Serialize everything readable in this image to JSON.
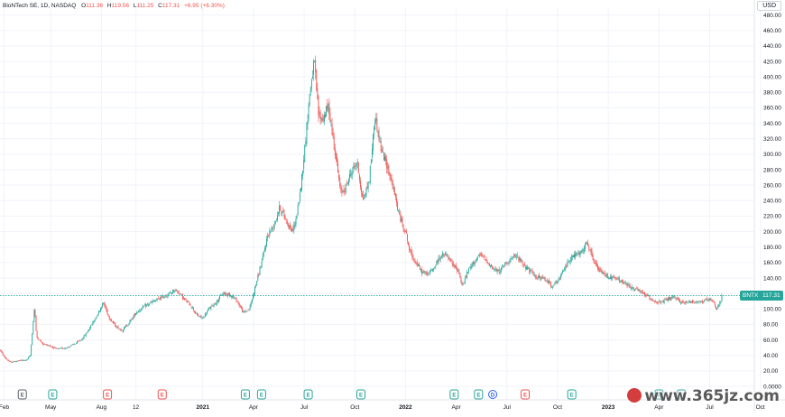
{
  "legend": {
    "symbol": "BioNTech SE, 1D, NASDAQ",
    "open_label": "O",
    "open": "111.36",
    "high_label": "H",
    "high": "119.56",
    "low_label": "L",
    "low": "111.25",
    "close_label": "C",
    "close": "117.31",
    "change": "+6.95 (+6.30%)"
  },
  "currency": "USD",
  "price_tag": {
    "ticker": "BNTX",
    "price": "117.31"
  },
  "watermark": "www.365jz.com",
  "colors": {
    "up": "#26a69a",
    "down": "#ef5350",
    "grid": "#f0f3fa",
    "price_line": "#26a69a"
  },
  "chart_data": {
    "type": "candlestick",
    "ylim": [
      0,
      490
    ],
    "y_ticks": [
      "480.00",
      "460.00",
      "440.00",
      "420.00",
      "400.00",
      "380.00",
      "360.00",
      "340.00",
      "320.00",
      "300.00",
      "280.00",
      "260.00",
      "240.00",
      "220.00",
      "200.00",
      "180.00",
      "160.00",
      "140.00",
      "120.00",
      "100.00",
      "80.00",
      "60.00",
      "40.00",
      "20.00",
      "0.0000"
    ],
    "x_ticks": [
      {
        "label": "Feb",
        "t": 0.02,
        "bold": false
      },
      {
        "label": "May",
        "t": 0.25,
        "bold": false
      },
      {
        "label": "Aug",
        "t": 0.5,
        "bold": false
      },
      {
        "label": "12",
        "t": 0.67,
        "bold": false
      },
      {
        "label": "2021",
        "t": 1.0,
        "bold": true
      },
      {
        "label": "Apr",
        "t": 1.25,
        "bold": false
      },
      {
        "label": "Jul",
        "t": 1.5,
        "bold": false
      },
      {
        "label": "Oct",
        "t": 1.75,
        "bold": false
      },
      {
        "label": "2022",
        "t": 2.0,
        "bold": true
      },
      {
        "label": "Apr",
        "t": 2.25,
        "bold": false
      },
      {
        "label": "Jul",
        "t": 2.5,
        "bold": false
      },
      {
        "label": "Oct",
        "t": 2.75,
        "bold": false
      },
      {
        "label": "2023",
        "t": 3.0,
        "bold": true
      },
      {
        "label": "Apr",
        "t": 3.25,
        "bold": false
      },
      {
        "label": "Jul",
        "t": 3.5,
        "bold": false
      },
      {
        "label": "Oct",
        "t": 3.75,
        "bold": false
      }
    ],
    "x_range": [
      0,
      3.8
    ],
    "price_anchors": [
      [
        0.0,
        47
      ],
      [
        0.02,
        38
      ],
      [
        0.05,
        31
      ],
      [
        0.09,
        33
      ],
      [
        0.13,
        34
      ],
      [
        0.15,
        40
      ],
      [
        0.17,
        104
      ],
      [
        0.18,
        64
      ],
      [
        0.21,
        55
      ],
      [
        0.24,
        53
      ],
      [
        0.28,
        48
      ],
      [
        0.33,
        50
      ],
      [
        0.37,
        55
      ],
      [
        0.4,
        60
      ],
      [
        0.43,
        70
      ],
      [
        0.47,
        88
      ],
      [
        0.51,
        108
      ],
      [
        0.54,
        88
      ],
      [
        0.57,
        78
      ],
      [
        0.6,
        72
      ],
      [
        0.63,
        80
      ],
      [
        0.67,
        95
      ],
      [
        0.71,
        103
      ],
      [
        0.76,
        110
      ],
      [
        0.8,
        115
      ],
      [
        0.84,
        120
      ],
      [
        0.86,
        125
      ],
      [
        0.88,
        122
      ],
      [
        0.91,
        112
      ],
      [
        0.94,
        105
      ],
      [
        0.97,
        92
      ],
      [
        1.0,
        88
      ],
      [
        1.03,
        100
      ],
      [
        1.07,
        110
      ],
      [
        1.1,
        120
      ],
      [
        1.14,
        118
      ],
      [
        1.17,
        110
      ],
      [
        1.2,
        95
      ],
      [
        1.23,
        100
      ],
      [
        1.26,
        130
      ],
      [
        1.29,
        160
      ],
      [
        1.32,
        195
      ],
      [
        1.35,
        208
      ],
      [
        1.38,
        232
      ],
      [
        1.41,
        215
      ],
      [
        1.44,
        200
      ],
      [
        1.46,
        215
      ],
      [
        1.48,
        250
      ],
      [
        1.5,
        300
      ],
      [
        1.53,
        385
      ],
      [
        1.55,
        420
      ],
      [
        1.57,
        352
      ],
      [
        1.59,
        345
      ],
      [
        1.62,
        362
      ],
      [
        1.64,
        325
      ],
      [
        1.66,
        290
      ],
      [
        1.68,
        250
      ],
      [
        1.7,
        255
      ],
      [
        1.73,
        275
      ],
      [
        1.76,
        290
      ],
      [
        1.79,
        240
      ],
      [
        1.82,
        265
      ],
      [
        1.85,
        350
      ],
      [
        1.88,
        305
      ],
      [
        1.91,
        285
      ],
      [
        1.94,
        255
      ],
      [
        1.97,
        220
      ],
      [
        2.0,
        200
      ],
      [
        2.02,
        175
      ],
      [
        2.05,
        160
      ],
      [
        2.08,
        148
      ],
      [
        2.11,
        145
      ],
      [
        2.14,
        153
      ],
      [
        2.17,
        168
      ],
      [
        2.2,
        170
      ],
      [
        2.23,
        158
      ],
      [
        2.26,
        150
      ],
      [
        2.28,
        130
      ],
      [
        2.31,
        150
      ],
      [
        2.34,
        162
      ],
      [
        2.37,
        170
      ],
      [
        2.4,
        162
      ],
      [
        2.43,
        152
      ],
      [
        2.46,
        148
      ],
      [
        2.49,
        158
      ],
      [
        2.52,
        165
      ],
      [
        2.55,
        168
      ],
      [
        2.58,
        158
      ],
      [
        2.61,
        150
      ],
      [
        2.64,
        142
      ],
      [
        2.67,
        140
      ],
      [
        2.7,
        136
      ],
      [
        2.72,
        130
      ],
      [
        2.75,
        135
      ],
      [
        2.78,
        150
      ],
      [
        2.81,
        165
      ],
      [
        2.84,
        170
      ],
      [
        2.87,
        173
      ],
      [
        2.89,
        185
      ],
      [
        2.91,
        175
      ],
      [
        2.93,
        160
      ],
      [
        2.96,
        148
      ],
      [
        2.99,
        143
      ],
      [
        3.02,
        140
      ],
      [
        3.05,
        138
      ],
      [
        3.08,
        133
      ],
      [
        3.11,
        128
      ],
      [
        3.14,
        125
      ],
      [
        3.17,
        120
      ],
      [
        3.2,
        115
      ],
      [
        3.23,
        110
      ],
      [
        3.26,
        108
      ],
      [
        3.29,
        112
      ],
      [
        3.32,
        115
      ],
      [
        3.35,
        110
      ],
      [
        3.38,
        108
      ],
      [
        3.41,
        110
      ],
      [
        3.44,
        109
      ],
      [
        3.47,
        110
      ],
      [
        3.5,
        112
      ],
      [
        3.52,
        108
      ],
      [
        3.53,
        98
      ],
      [
        3.545,
        106
      ],
      [
        3.555,
        110.3
      ],
      [
        3.56,
        117.3
      ]
    ],
    "last_price": 117.31,
    "events": [
      {
        "t": 0.11,
        "type": "E",
        "style": "neutral"
      },
      {
        "t": 0.26,
        "type": "E",
        "style": "green"
      },
      {
        "t": 0.53,
        "type": "E",
        "style": "red"
      },
      {
        "t": 0.8,
        "type": "E",
        "style": "red"
      },
      {
        "t": 1.21,
        "type": "E",
        "style": "green"
      },
      {
        "t": 1.29,
        "type": "E",
        "style": "green"
      },
      {
        "t": 1.52,
        "type": "E",
        "style": "green"
      },
      {
        "t": 1.78,
        "type": "E",
        "style": "green"
      },
      {
        "t": 2.24,
        "type": "E",
        "style": "green"
      },
      {
        "t": 2.36,
        "type": "E",
        "style": "green"
      },
      {
        "t": 2.43,
        "type": "D",
        "style": "blue"
      },
      {
        "t": 2.59,
        "type": "E",
        "style": "red"
      },
      {
        "t": 2.82,
        "type": "E",
        "style": "green"
      },
      {
        "t": 3.25,
        "type": "E",
        "style": "green"
      },
      {
        "t": 3.36,
        "type": "E",
        "style": "green"
      }
    ]
  }
}
